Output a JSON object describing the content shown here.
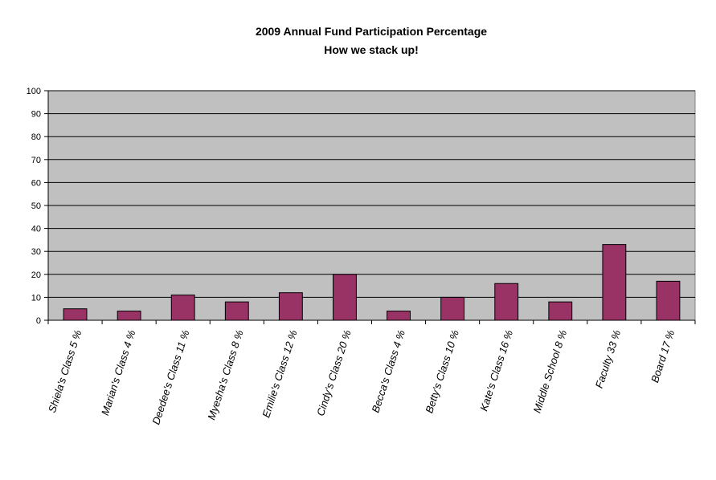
{
  "chart_data": {
    "type": "bar",
    "title": "2009 Annual Fund  Participation Percentage",
    "subtitle": "How we stack up!",
    "xlabel": "",
    "ylabel": "",
    "categories": [
      "Shiela's Class  5 %",
      "Marian's Class  4 %",
      "Deedee's Class  11 %",
      "Myesha's Class  8 %",
      "Emilie's Class  12 %",
      "Cindy's Class  20 %",
      "Becca's Class  4 %",
      "Betty's Class  10 %",
      "Kate's Class  16 %",
      "Middle School  8 %",
      "Faculty  33 %",
      "Board  17 %"
    ],
    "values": [
      5,
      4,
      11,
      8,
      12,
      20,
      4,
      10,
      16,
      8,
      33,
      17
    ],
    "ylim": [
      0,
      100
    ],
    "yticks": [
      0,
      10,
      20,
      30,
      40,
      50,
      60,
      70,
      80,
      90,
      100
    ],
    "grid": true,
    "legend": "none",
    "colors": {
      "bar": "#993366",
      "plot_background": "#c0c0c0",
      "gridline": "#000000"
    }
  }
}
